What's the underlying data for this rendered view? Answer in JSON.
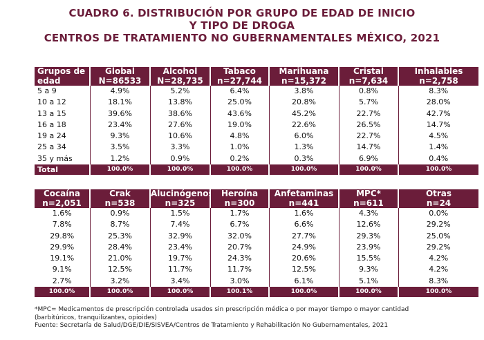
{
  "title": {
    "line1": "CUADRO 6. DISTRIBUCIÓN POR GRUPO DE EDAD DE INICIO",
    "line2": "Y TIPO DE DROGA",
    "line3": "CENTROS DE TRATAMIENTO NO GUBERNAMENTALES MÉXICO, 2021"
  },
  "colors": {
    "header_bg": "#6b1d3a",
    "title": "#6b1d3a"
  },
  "table1": {
    "headers": [
      [
        "Grupos de",
        "edad"
      ],
      [
        "Global",
        "N=86533"
      ],
      [
        "Alcohol",
        "N=28,735"
      ],
      [
        "Tabaco",
        "n=27,744"
      ],
      [
        "Marihuana",
        "n=15,372"
      ],
      [
        "Cristal",
        "n=7,634"
      ],
      [
        "Inhalables",
        "n=2,758"
      ]
    ],
    "rows": [
      [
        "5 a 9",
        "4.9%",
        "5.2%",
        "6.4%",
        "3.8%",
        "0.8%",
        "8.3%"
      ],
      [
        "10 a 12",
        "18.1%",
        "13.8%",
        "25.0%",
        "20.8%",
        "5.7%",
        "28.0%"
      ],
      [
        "13 a 15",
        "39.6%",
        "38.6%",
        "43.6%",
        "45.2%",
        "22.7%",
        "42.7%"
      ],
      [
        "16 a 18",
        "23.4%",
        "27.6%",
        "19.0%",
        "22.6%",
        "26.5%",
        "14.7%"
      ],
      [
        "19 a 24",
        "9.3%",
        "10.6%",
        "4.8%",
        "6.0%",
        "22.7%",
        "4.5%"
      ],
      [
        "25 a 34",
        "3.5%",
        "3.3%",
        "1.0%",
        "1.3%",
        "14.7%",
        "1.4%"
      ],
      [
        "35 y más",
        "1.2%",
        "0.9%",
        "0.2%",
        "0.3%",
        "6.9%",
        "0.4%"
      ]
    ],
    "total": [
      "Total",
      "100.0%",
      "100.0%",
      "100.0%",
      "100.0%",
      "100.0%",
      "100.0%"
    ]
  },
  "table2": {
    "headers": [
      [
        "Cocaína",
        "n=2,051"
      ],
      [
        "Crak",
        "n=538"
      ],
      [
        "Alucinógenos",
        "n=325"
      ],
      [
        "Heroína",
        "n=300"
      ],
      [
        "Anfetaminas",
        "n=441"
      ],
      [
        "MPC*",
        "n=611"
      ],
      [
        "Otras",
        "n=24"
      ]
    ],
    "rows": [
      [
        "1.6%",
        "0.9%",
        "1.5%",
        "1.7%",
        "1.6%",
        "4.3%",
        "0.0%"
      ],
      [
        "7.8%",
        "8.7%",
        "7.4%",
        "6.7%",
        "6.6%",
        "12.6%",
        "29.2%"
      ],
      [
        "29.8%",
        "25.3%",
        "32.9%",
        "32.0%",
        "27.7%",
        "29.3%",
        "25.0%"
      ],
      [
        "29.9%",
        "28.4%",
        "23.4%",
        "20.7%",
        "24.9%",
        "23.9%",
        "29.2%"
      ],
      [
        "19.1%",
        "21.0%",
        "19.7%",
        "24.3%",
        "20.6%",
        "15.5%",
        "4.2%"
      ],
      [
        "9.1%",
        "12.5%",
        "11.7%",
        "11.7%",
        "12.5%",
        "9.3%",
        "4.2%"
      ],
      [
        "2.7%",
        "3.2%",
        "3.4%",
        "3.0%",
        "6.1%",
        "5.1%",
        "8.3%"
      ]
    ],
    "total": [
      "100.0%",
      "100.0%",
      "100.0%",
      "100.1%",
      "100.0%",
      "100.0%",
      "100.0%"
    ]
  },
  "notes": {
    "line1": "*MPC= Medicamentos de prescripción controlada usados sin prescripción médica o por mayor tiempo o mayor cantidad",
    "line2": "(barbitúricos, tranquilizantes, opioides)",
    "line3": "Fuente: Secretaría de Salud/DGE/DIE/SISVEA/Centros de Tratamiento y Rehabilitación No Gubernamentales, 2021"
  },
  "chart_data": {
    "type": "table",
    "title": "CUADRO 6. DISTRIBUCIÓN POR GRUPO DE EDAD DE INICIO Y TIPO DE DROGA CENTROS DE TRATAMIENTO NO GUBERNAMENTALES MÉXICO, 2021",
    "categories": [
      "5 a 9",
      "10 a 12",
      "13 a 15",
      "16 a 18",
      "19 a 24",
      "25 a 34",
      "35 y más"
    ],
    "unit": "%",
    "series": [
      {
        "name": "Global",
        "n": "N=86533",
        "values": [
          4.9,
          18.1,
          39.6,
          23.4,
          9.3,
          3.5,
          1.2
        ],
        "total": 100.0
      },
      {
        "name": "Alcohol",
        "n": "N=28,735",
        "values": [
          5.2,
          13.8,
          38.6,
          27.6,
          10.6,
          3.3,
          0.9
        ],
        "total": 100.0
      },
      {
        "name": "Tabaco",
        "n": "n=27,744",
        "values": [
          6.4,
          25.0,
          43.6,
          19.0,
          4.8,
          1.0,
          0.2
        ],
        "total": 100.0
      },
      {
        "name": "Marihuana",
        "n": "n=15,372",
        "values": [
          3.8,
          20.8,
          45.2,
          22.6,
          6.0,
          1.3,
          0.3
        ],
        "total": 100.0
      },
      {
        "name": "Cristal",
        "n": "n=7,634",
        "values": [
          0.8,
          5.7,
          22.7,
          26.5,
          22.7,
          14.7,
          6.9
        ],
        "total": 100.0
      },
      {
        "name": "Inhalables",
        "n": "n=2,758",
        "values": [
          8.3,
          28.0,
          42.7,
          14.7,
          4.5,
          1.4,
          0.4
        ],
        "total": 100.0
      },
      {
        "name": "Cocaína",
        "n": "n=2,051",
        "values": [
          1.6,
          7.8,
          29.8,
          29.9,
          19.1,
          9.1,
          2.7
        ],
        "total": 100.0
      },
      {
        "name": "Crak",
        "n": "n=538",
        "values": [
          0.9,
          8.7,
          25.3,
          28.4,
          21.0,
          12.5,
          3.2
        ],
        "total": 100.0
      },
      {
        "name": "Alucinógenos",
        "n": "n=325",
        "values": [
          1.5,
          7.4,
          32.9,
          23.4,
          19.7,
          11.7,
          3.4
        ],
        "total": 100.0
      },
      {
        "name": "Heroína",
        "n": "n=300",
        "values": [
          1.7,
          6.7,
          32.0,
          20.7,
          24.3,
          11.7,
          3.0
        ],
        "total": 100.1
      },
      {
        "name": "Anfetaminas",
        "n": "n=441",
        "values": [
          1.6,
          6.6,
          27.7,
          24.9,
          20.6,
          12.5,
          6.1
        ],
        "total": 100.0
      },
      {
        "name": "MPC*",
        "n": "n=611",
        "values": [
          4.3,
          12.6,
          29.3,
          23.9,
          15.5,
          9.3,
          5.1
        ],
        "total": 100.0
      },
      {
        "name": "Otras",
        "n": "n=24",
        "values": [
          0.0,
          29.2,
          25.0,
          29.2,
          4.2,
          4.2,
          8.3
        ],
        "total": 100.0
      }
    ]
  }
}
